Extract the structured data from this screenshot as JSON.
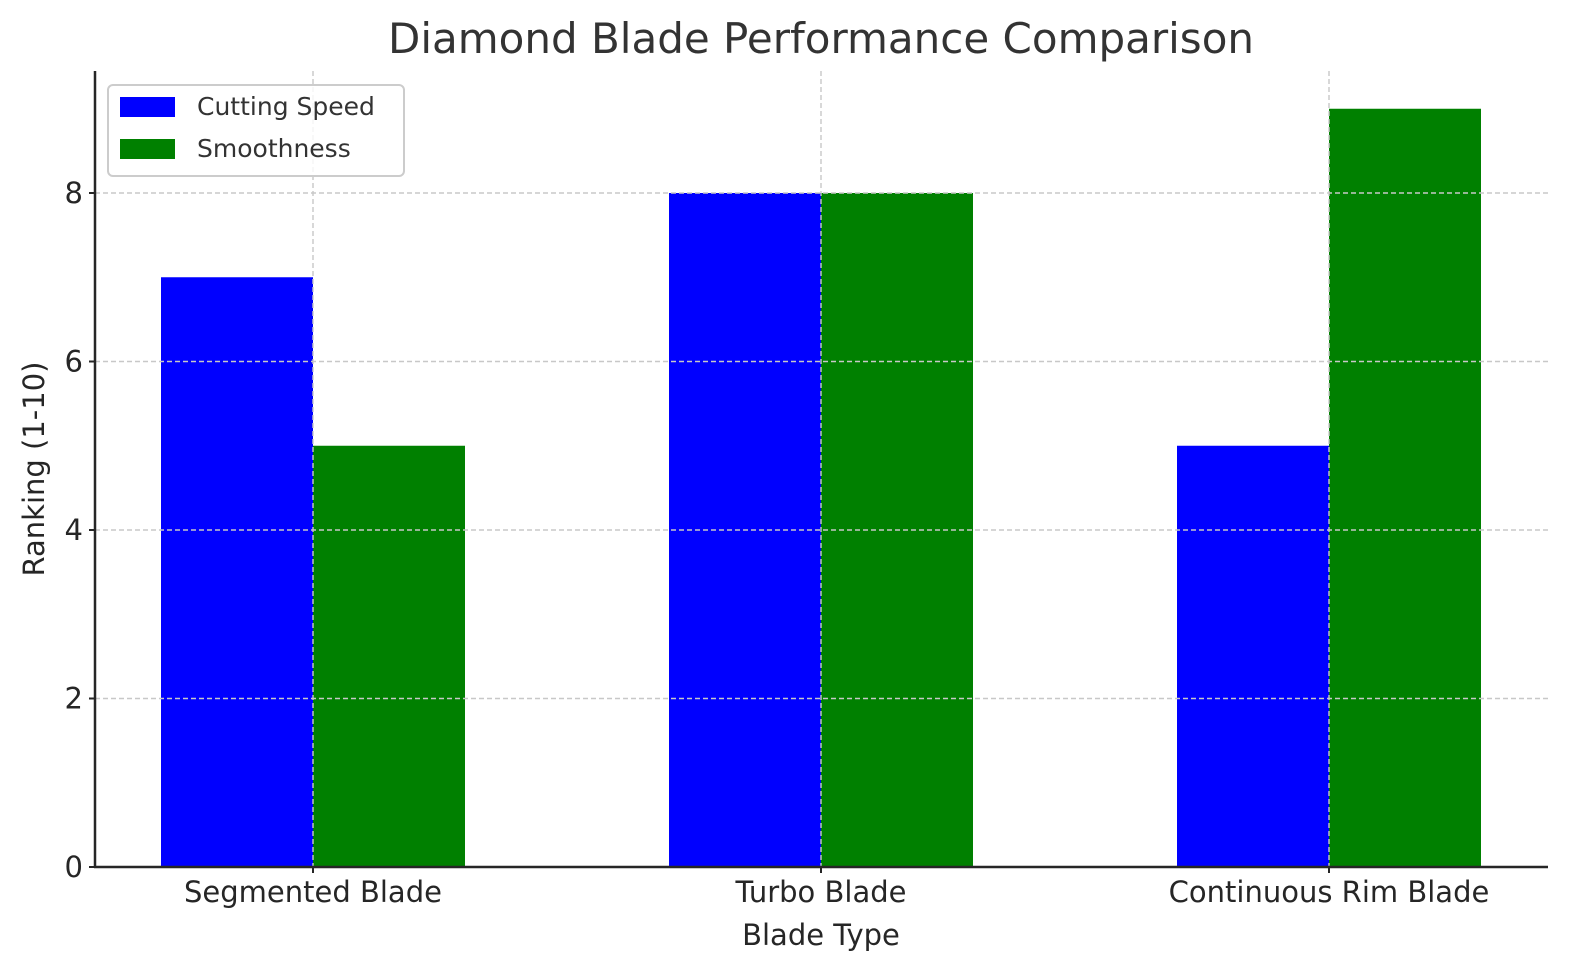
{
  "chart_data": {
    "type": "bar",
    "title": "Diamond Blade Performance Comparison",
    "xlabel": "Blade Type",
    "ylabel": "Ranking (1-10)",
    "categories": [
      "Segmented Blade",
      "Turbo Blade",
      "Continuous Rim Blade"
    ],
    "series": [
      {
        "name": "Cutting Speed",
        "color": "#0000ff",
        "values": [
          7,
          8,
          5
        ]
      },
      {
        "name": "Smoothness",
        "color": "#008000",
        "values": [
          5,
          8,
          9
        ]
      }
    ],
    "yticks": [
      0,
      2,
      4,
      6,
      8
    ],
    "ylim": [
      0,
      9.45
    ],
    "grid": true,
    "legend_position": "upper left"
  }
}
